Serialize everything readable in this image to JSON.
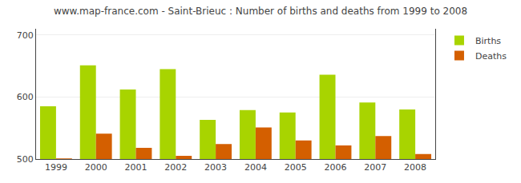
{
  "chart_data": {
    "type": "bar",
    "title": "www.map-france.com - Saint-Brieuc : Number of births and deaths from 1999 to 2008",
    "categories": [
      "1999",
      "2000",
      "2001",
      "2002",
      "2003",
      "2004",
      "2005",
      "2006",
      "2007",
      "2008"
    ],
    "series": [
      {
        "name": "Births",
        "color": "#a8d400",
        "values": [
          585,
          651,
          612,
          645,
          563,
          579,
          575,
          636,
          591,
          580
        ]
      },
      {
        "name": "Deaths",
        "color": "#d45f00",
        "values": [
          501,
          541,
          518,
          505,
          524,
          551,
          530,
          522,
          537,
          508
        ]
      }
    ],
    "ylim": [
      500,
      710
    ],
    "yticks": [
      500,
      600,
      700
    ],
    "grid": true,
    "legend": "upper right"
  }
}
